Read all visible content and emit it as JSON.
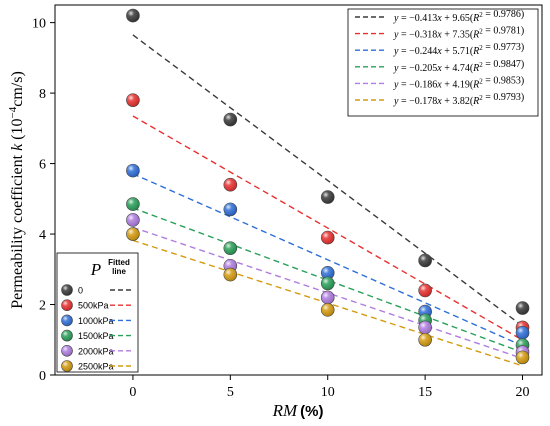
{
  "chart_data": {
    "type": "scatter",
    "xlabel_italic": "RM",
    "xlabel_unit": "(%)",
    "ylabel_prefix": "Permeability coefficient ",
    "ylabel_var": "k",
    "ylabel_unit": " (10",
    "ylabel_exp": "−4",
    "ylabel_tail": "cm/s)",
    "xlim": [
      -4,
      21
    ],
    "ylim": [
      0,
      10.5
    ],
    "x_ticks": [
      0,
      5,
      10,
      15,
      20
    ],
    "y_ticks": [
      0,
      2,
      4,
      6,
      8,
      10
    ],
    "x_tick_labels": [
      "0",
      "5",
      "10",
      "15",
      "20"
    ],
    "y_tick_labels": [
      "0",
      "2",
      "4",
      "6",
      "8",
      "10"
    ],
    "grid": false,
    "series": [
      {
        "name": "0",
        "color": "#3a3a3a",
        "x": [
          0,
          5,
          10,
          15,
          20
        ],
        "y": [
          10.2,
          7.25,
          5.05,
          3.25,
          1.9
        ],
        "fit": {
          "slope": -0.413,
          "intercept": 9.65,
          "r2": "0.9786"
        }
      },
      {
        "name": "500kPa",
        "color": "#e8302f",
        "x": [
          0,
          5,
          10,
          15,
          20
        ],
        "y": [
          7.8,
          5.4,
          3.9,
          2.4,
          1.35
        ],
        "fit": {
          "slope": -0.318,
          "intercept": 7.35,
          "r2": "0.9781"
        }
      },
      {
        "name": "1000kPa",
        "color": "#2f6fd8",
        "x": [
          0,
          5,
          10,
          15,
          20
        ],
        "y": [
          5.8,
          4.7,
          2.9,
          1.8,
          1.2
        ],
        "fit": {
          "slope": -0.244,
          "intercept": 5.71,
          "r2": "0.9773"
        }
      },
      {
        "name": "1500kPa",
        "color": "#2aa05a",
        "x": [
          0,
          5,
          10,
          15,
          20
        ],
        "y": [
          4.85,
          3.6,
          2.6,
          1.55,
          0.85
        ],
        "fit": {
          "slope": -0.205,
          "intercept": 4.74,
          "r2": "0.9847"
        }
      },
      {
        "name": "2000kPa",
        "color": "#b07de0",
        "x": [
          0,
          5,
          10,
          15,
          20
        ],
        "y": [
          4.4,
          3.1,
          2.2,
          1.35,
          0.65
        ],
        "fit": {
          "slope": -0.186,
          "intercept": 4.19,
          "r2": "0.9853"
        }
      },
      {
        "name": "2500kPa",
        "color": "#d49b10",
        "x": [
          0,
          5,
          10,
          15,
          20
        ],
        "y": [
          4.0,
          2.85,
          1.85,
          1.0,
          0.5
        ],
        "fit": {
          "slope": -0.178,
          "intercept": 3.82,
          "r2": "0.9793"
        }
      }
    ],
    "legend_title_symbol": "P",
    "legend_title_line": [
      "Fitted",
      "line"
    ],
    "legend_placement": "bottom-left",
    "equation_legend_placement": "top-right",
    "equations": [
      {
        "slope": "−0.413",
        "intercept": "9.65",
        "r2": "0.9786"
      },
      {
        "slope": "−0.318",
        "intercept": "7.35",
        "r2": "0.9781"
      },
      {
        "slope": "−0.244",
        "intercept": "5.71",
        "r2": "0.9773"
      },
      {
        "slope": "−0.205",
        "intercept": "4.74",
        "r2": "0.9847"
      },
      {
        "slope": "−0.186",
        "intercept": "4.19",
        "r2": "0.9853"
      },
      {
        "slope": "−0.178",
        "intercept": "3.82",
        "r2": "0.9793"
      }
    ]
  }
}
